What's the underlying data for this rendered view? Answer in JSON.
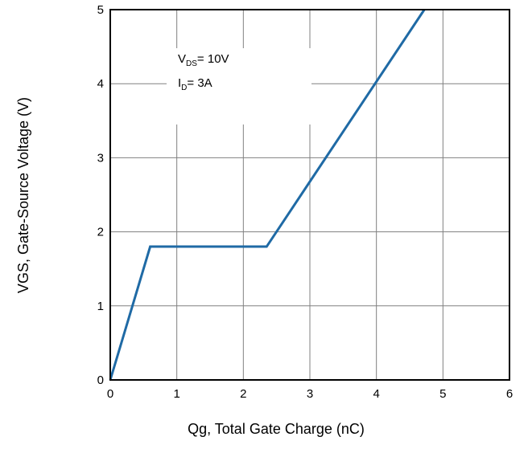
{
  "chart_data": {
    "type": "line",
    "title": "",
    "xlabel": "Qg, Total Gate Charge (nC)",
    "ylabel": "VGS, Gate-Source Voltage (V)",
    "xlim": [
      0,
      6
    ],
    "ylim": [
      0,
      5
    ],
    "x_ticks": [
      "0",
      "1",
      "2",
      "3",
      "4",
      "5",
      "6"
    ],
    "y_ticks": [
      "0",
      "1",
      "2",
      "3",
      "4",
      "5"
    ],
    "grid": true,
    "series": [
      {
        "x": [
          0,
          0.6,
          2.35,
          4.72
        ],
        "y": [
          0,
          1.8,
          1.8,
          5.0
        ],
        "color": "#1f6aa5"
      }
    ],
    "annotations": {
      "vds_main": "V",
      "vds_sub": "DS",
      "vds_value": "= 10V",
      "id_main": "I",
      "id_sub": "D",
      "id_value": "= 3A"
    }
  }
}
